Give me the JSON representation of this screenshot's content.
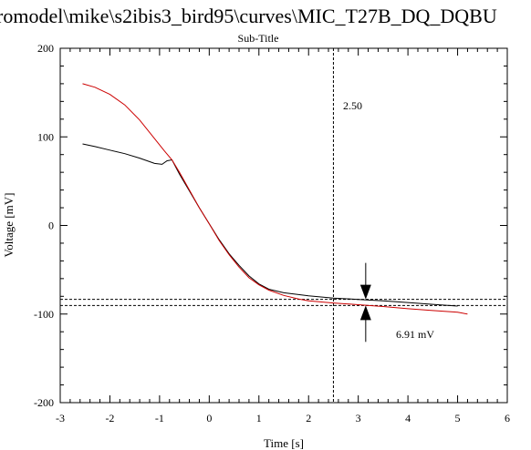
{
  "chart_data": {
    "type": "line",
    "title": "romodel\\mike\\s2ibis3_bird95\\curves\\MIC_T27B_DQ_DQBU",
    "subtitle": "Sub-Title",
    "xlabel": "Time [s]",
    "ylabel": "Voltage [mV]",
    "xlim": [
      -3,
      6
    ],
    "ylim": [
      -200,
      200
    ],
    "xticks": [
      "-3",
      "-2",
      "-1",
      "0",
      "1",
      "2",
      "3",
      "4",
      "5",
      "6"
    ],
    "yticks": [
      "200",
      "100",
      "0",
      "-100",
      "-200"
    ],
    "grid": false,
    "legend": "none",
    "colors": {
      "series_1": "#000000",
      "series_2": "#cc0000",
      "axes": "#000000"
    },
    "series": [
      {
        "color": "#000000",
        "x": [
          -2.55,
          -2.3,
          -2.0,
          -1.7,
          -1.4,
          -1.1,
          -0.95,
          -0.85,
          -0.75,
          -0.6,
          -0.4,
          -0.2,
          0.0,
          0.2,
          0.4,
          0.6,
          0.8,
          1.0,
          1.2,
          1.5,
          1.8,
          2.0,
          2.5,
          3.0,
          3.5,
          4.0,
          4.5,
          5.0
        ],
        "y": [
          92,
          89,
          85,
          81,
          76,
          70,
          69,
          73,
          74,
          58,
          39,
          20,
          2,
          -16,
          -32,
          -45,
          -57,
          -66,
          -72,
          -76,
          -78,
          -79.5,
          -82,
          -83.5,
          -85,
          -87,
          -89,
          -91
        ]
      },
      {
        "color": "#cc0000",
        "x": [
          -2.55,
          -2.3,
          -2.0,
          -1.7,
          -1.4,
          -1.1,
          -0.9,
          -0.75,
          -0.6,
          -0.4,
          -0.2,
          0.0,
          0.2,
          0.4,
          0.6,
          0.8,
          1.0,
          1.2,
          1.5,
          1.8,
          2.0,
          2.5,
          3.0,
          3.5,
          4.0,
          4.5,
          5.0,
          5.2
        ],
        "y": [
          160,
          156,
          148,
          136,
          119,
          98,
          84,
          74,
          60,
          40,
          20,
          2,
          -17,
          -33,
          -47,
          -59,
          -67,
          -73,
          -79,
          -83,
          -85,
          -87.5,
          -89.5,
          -91.5,
          -94,
          -96,
          -98,
          -100
        ]
      }
    ],
    "annotations": {
      "marker_x": 2.5,
      "marker_label": "2.50",
      "hlines": [
        -83.4,
        -90.3
      ],
      "arrow_x": 3.15,
      "delta_label": "6.91 mV"
    }
  }
}
